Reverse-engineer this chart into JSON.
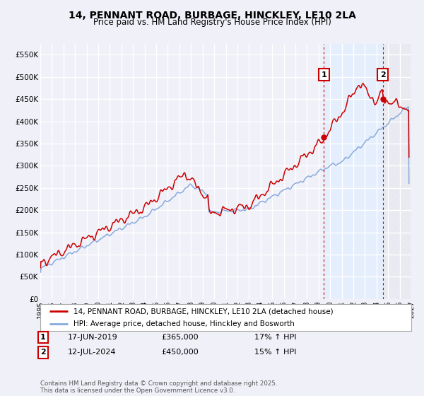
{
  "title": "14, PENNANT ROAD, BURBAGE, HINCKLEY, LE10 2LA",
  "subtitle": "Price paid vs. HM Land Registry's House Price Index (HPI)",
  "legend_entry1": "14, PENNANT ROAD, BURBAGE, HINCKLEY, LE10 2LA (detached house)",
  "legend_entry2": "HPI: Average price, detached house, Hinckley and Bosworth",
  "annotation1_date": "17-JUN-2019",
  "annotation1_price": "£365,000",
  "annotation1_hpi": "17% ↑ HPI",
  "annotation1_year": 2019.46,
  "annotation1_value": 365000,
  "annotation2_date": "12-JUL-2024",
  "annotation2_price": "£450,000",
  "annotation2_hpi": "15% ↑ HPI",
  "annotation2_year": 2024.54,
  "annotation2_value": 450000,
  "vline1_year": 2019.46,
  "vline2_year": 2024.54,
  "ylim": [
    0,
    575000
  ],
  "xlim": [
    1995,
    2027
  ],
  "yticks": [
    0,
    50000,
    100000,
    150000,
    200000,
    250000,
    300000,
    350000,
    400000,
    450000,
    500000,
    550000
  ],
  "ytick_labels": [
    "£0",
    "£50K",
    "£100K",
    "£150K",
    "£200K",
    "£250K",
    "£300K",
    "£350K",
    "£400K",
    "£450K",
    "£500K",
    "£550K"
  ],
  "xticks": [
    1995,
    1996,
    1997,
    1998,
    1999,
    2000,
    2001,
    2002,
    2003,
    2004,
    2005,
    2006,
    2007,
    2008,
    2009,
    2010,
    2011,
    2012,
    2013,
    2014,
    2015,
    2016,
    2017,
    2018,
    2019,
    2020,
    2021,
    2022,
    2023,
    2024,
    2025,
    2026,
    2027
  ],
  "background_color": "#f0f0f8",
  "plot_bg_color": "#f0f0f8",
  "line1_color": "#cc0000",
  "line2_color": "#88aadd",
  "grid_color": "#ffffff",
  "shaded_color": "#ddeeff",
  "hatch_color": "#ccccdd",
  "title_fontsize": 10,
  "subtitle_fontsize": 8.5,
  "footer": "Contains HM Land Registry data © Crown copyright and database right 2025.\nThis data is licensed under the Open Government Licence v3.0."
}
